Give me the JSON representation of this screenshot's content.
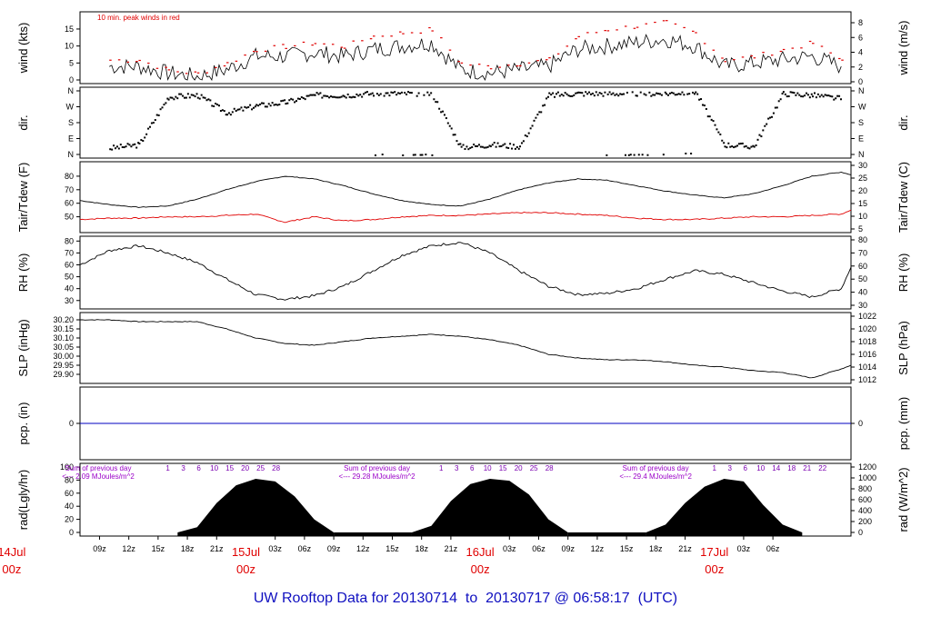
{
  "title": "UW Rooftop Data for 20130714  to  20130717 @ 06:58:17  (UTC)",
  "title_parts": {
    "start": "20130714",
    "end": "20130717",
    "time": "06:58:17",
    "zone": "(UTC)"
  },
  "chart_data": {
    "type": "line",
    "x_hour_ticks": [
      "09z",
      "12z",
      "15z",
      "18z",
      "21z",
      "03z",
      "06z",
      "09z",
      "12z",
      "15z",
      "18z",
      "21z",
      "03z",
      "06z",
      "09z",
      "12z",
      "15z",
      "18z",
      "21z",
      "03z",
      "06z"
    ],
    "day_labels": [
      {
        "top": "14Jul",
        "bottom": "00z"
      },
      {
        "top": "15Jul",
        "bottom": "00z"
      },
      {
        "top": "16Jul",
        "bottom": "00z"
      },
      {
        "top": "17Jul",
        "bottom": "00z"
      }
    ],
    "panels": [
      {
        "id": "wind",
        "ylabel_left": "wind (kts)",
        "ylabel_right": "wind (m/s)",
        "ylim_left": [
          0,
          19
        ],
        "ticks_left": [
          "0",
          "5",
          "10",
          "15"
        ],
        "ticks_right": [
          "0",
          "2",
          "4",
          "6",
          "8"
        ],
        "annotation": "10 min. peak winds in red",
        "series": [
          {
            "name": "wind",
            "color": "#000000",
            "hours": [
              3,
              6,
              9,
              12,
              15,
              18,
              21,
              24,
              27,
              30,
              33,
              36,
              39,
              42,
              45,
              48,
              51,
              54,
              57,
              60,
              63,
              66,
              69,
              72,
              75,
              78
            ],
            "values": [
              4,
              4,
              2,
              1,
              3,
              7,
              7,
              8,
              7,
              9,
              10,
              11,
              3,
              2,
              3,
              4,
              9,
              10,
              11,
              12,
              10,
              4,
              5,
              6,
              7,
              4
            ]
          },
          {
            "name": "peak",
            "color": "#e00000",
            "hours": [
              3,
              6,
              9,
              12,
              15,
              18,
              21,
              24,
              27,
              30,
              33,
              36,
              39,
              42,
              45,
              48,
              51,
              54,
              57,
              60,
              63,
              66,
              69,
              72,
              75,
              78
            ],
            "values": [
              6,
              6,
              3,
              2,
              5,
              9,
              10,
              11,
              10,
              13,
              14,
              15,
              5,
              4,
              5,
              6,
              13,
              15,
              16,
              17,
              14,
              6,
              7,
              9,
              11,
              6
            ]
          }
        ]
      },
      {
        "id": "dir",
        "ylabel_left": "dir.",
        "ylabel_right": "dir.",
        "ticks_left": [
          "N",
          "E",
          "S",
          "W",
          "N"
        ],
        "ticks_right": [
          "N",
          "E",
          "S",
          "W",
          "N"
        ],
        "series": [
          {
            "name": "direction (deg)",
            "hours": [
              3,
              6,
              9,
              12,
              15,
              18,
              21,
              24,
              27,
              30,
              33,
              36,
              39,
              42,
              45,
              48,
              51,
              54,
              57,
              60,
              63,
              66,
              69,
              72,
              75,
              78
            ],
            "values": [
              40,
              60,
              330,
              340,
              240,
              280,
              300,
              340,
              340,
              350,
              350,
              350,
              45,
              60,
              50,
              340,
              350,
              350,
              350,
              350,
              360,
              60,
              50,
              350,
              340,
              320
            ]
          }
        ]
      },
      {
        "id": "temp",
        "ylabel_left": "Tair/Tdew (F)",
        "ylabel_right": "Tair/Tdew (C)",
        "ylim_left": [
          41,
          88
        ],
        "ticks_left": [
          "50",
          "60",
          "70",
          "80"
        ],
        "ticks_right": [
          "5",
          "10",
          "15",
          "20",
          "25",
          "30"
        ],
        "series": [
          {
            "name": "Tair",
            "color": "#000000",
            "hours": [
              0,
              3,
              6,
              9,
              12,
              15,
              18,
              21,
              24,
              27,
              30,
              33,
              36,
              39,
              42,
              45,
              48,
              51,
              54,
              57,
              60,
              63,
              66,
              69,
              72,
              75,
              78,
              79
            ],
            "values": [
              62,
              59,
              57,
              58,
              63,
              70,
              76,
              80,
              78,
              73,
              67,
              62,
              59,
              58,
              63,
              70,
              75,
              78,
              77,
              73,
              69,
              66,
              64,
              67,
              73,
              80,
              83,
              81
            ]
          },
          {
            "name": "Tdew",
            "color": "#e00000",
            "hours": [
              0,
              3,
              6,
              9,
              12,
              15,
              18,
              21,
              24,
              27,
              30,
              33,
              36,
              39,
              42,
              45,
              48,
              51,
              54,
              57,
              60,
              63,
              66,
              69,
              72,
              75,
              78,
              79
            ],
            "values": [
              48,
              49,
              49,
              50,
              50,
              51,
              52,
              46,
              50,
              47,
              48,
              50,
              51,
              51,
              52,
              53,
              53,
              52,
              51,
              49,
              48,
              48,
              49,
              50,
              50,
              51,
              52,
              55
            ]
          }
        ]
      },
      {
        "id": "rh",
        "ylabel_left": "RH (%)",
        "ylabel_right": "RH (%)",
        "ylim_left": [
          26,
          81
        ],
        "ticks_left": [
          "30",
          "40",
          "50",
          "60",
          "70",
          "80"
        ],
        "ticks_right": [
          "30",
          "40",
          "50",
          "60",
          "70",
          "80"
        ],
        "series": [
          {
            "name": "RH",
            "color": "#000000",
            "hours": [
              0,
              3,
              6,
              9,
              12,
              15,
              18,
              21,
              24,
              27,
              30,
              33,
              36,
              39,
              42,
              45,
              48,
              51,
              54,
              57,
              60,
              63,
              66,
              69,
              72,
              75,
              78,
              79
            ],
            "values": [
              60,
              72,
              76,
              70,
              62,
              48,
              35,
              31,
              34,
              42,
              55,
              68,
              76,
              79,
              70,
              55,
              42,
              35,
              36,
              40,
              48,
              55,
              52,
              45,
              38,
              33,
              40,
              58
            ]
          }
        ]
      },
      {
        "id": "slp",
        "ylabel_left": "SLP (inHg)",
        "ylabel_right": "SLP (hPa)",
        "ylim_left": [
          29.87,
          30.22
        ],
        "ticks_left": [
          "29.90",
          "29.95",
          "30.00",
          "30.05",
          "30.10",
          "30.15",
          "30.20"
        ],
        "ticks_right": [
          "1012",
          "1014",
          "1016",
          "1018",
          "1020",
          "1022"
        ],
        "series": [
          {
            "name": "SLP",
            "color": "#000000",
            "hours": [
              0,
              3,
              6,
              9,
              12,
              15,
              18,
              21,
              24,
              27,
              30,
              33,
              36,
              39,
              42,
              45,
              48,
              51,
              54,
              57,
              60,
              63,
              66,
              69,
              72,
              75,
              78,
              79
            ],
            "values": [
              30.2,
              30.2,
              30.19,
              30.19,
              30.19,
              30.15,
              30.1,
              30.07,
              30.06,
              30.08,
              30.1,
              30.11,
              30.12,
              30.11,
              30.09,
              30.06,
              30.01,
              29.99,
              29.98,
              29.98,
              29.97,
              29.95,
              29.94,
              29.92,
              29.91,
              29.88,
              29.93,
              29.95
            ]
          }
        ]
      },
      {
        "id": "pcp",
        "ylabel_left": "pcp. (in)",
        "ylabel_right": "pcp. (mm)",
        "ticks_left": [
          "0"
        ],
        "ticks_right": [
          "0"
        ],
        "series": [
          {
            "name": "precipitation",
            "color": "#0000c0",
            "hours": [
              0,
              79
            ],
            "values": [
              0,
              0
            ]
          }
        ]
      },
      {
        "id": "rad",
        "ylabel_left": "rad(Lgly/hr)",
        "ylabel_right": "rad (W/m^2)",
        "ylim_left": [
          0,
          100
        ],
        "ticks_left": [
          "0",
          "20",
          "40",
          "60",
          "80",
          "100"
        ],
        "ticks_right": [
          "0",
          "200",
          "400",
          "600",
          "800",
          "1000",
          "1200"
        ],
        "sum_notes": [
          {
            "line1": "Sum of previous day",
            "line2": "<--- 2.09 MJoules/m^2"
          },
          {
            "line1": "Sum of previous day",
            "line2": "<--- 29.28 MJoules/m^2"
          },
          {
            "line1": "Sum of previous day",
            "line2": "<--- 29.4 MJoules/m^2"
          }
        ],
        "hour_marks": [
          [
            "1",
            "3",
            "6",
            "10",
            "15",
            "20",
            "25",
            "28"
          ],
          [
            "1",
            "3",
            "6",
            "10",
            "15",
            "20",
            "25",
            "28"
          ],
          [
            "1",
            "3",
            "6",
            "10",
            "14",
            "18",
            "21",
            "22"
          ]
        ],
        "series": [
          {
            "name": "solar radiation",
            "color": "#000000",
            "hours": [
              10,
              12,
              14,
              16,
              18,
              20,
              22,
              24,
              26,
              34,
              36,
              38,
              40,
              42,
              44,
              46,
              48,
              50,
              58,
              60,
              62,
              64,
              66,
              68,
              70,
              72,
              74
            ],
            "values": [
              0,
              8,
              45,
              72,
              82,
              78,
              55,
              20,
              0,
              0,
              10,
              48,
              74,
              82,
              79,
              58,
              20,
              0,
              0,
              12,
              45,
              70,
              82,
              78,
              42,
              12,
              0
            ]
          }
        ]
      }
    ]
  }
}
